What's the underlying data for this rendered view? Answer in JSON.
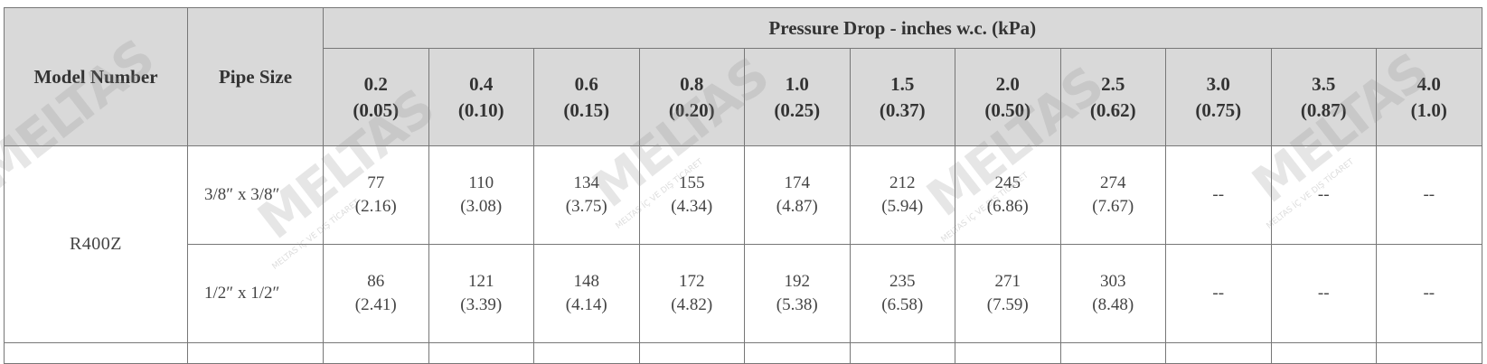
{
  "table": {
    "headers": {
      "model": "Model Number",
      "pipe": "Pipe Size",
      "group": "Pressure Drop - inches w.c. (kPa)",
      "drops": [
        {
          "value": "0.2",
          "kpa": "(0.05)"
        },
        {
          "value": "0.4",
          "kpa": "(0.10)"
        },
        {
          "value": "0.6",
          "kpa": "(0.15)"
        },
        {
          "value": "0.8",
          "kpa": "(0.20)"
        },
        {
          "value": "1.0",
          "kpa": "(0.25)"
        },
        {
          "value": "1.5",
          "kpa": "(0.37)"
        },
        {
          "value": "2.0",
          "kpa": "(0.50)"
        },
        {
          "value": "2.5",
          "kpa": "(0.62)"
        },
        {
          "value": "3.0",
          "kpa": "(0.75)"
        },
        {
          "value": "3.5",
          "kpa": "(0.87)"
        },
        {
          "value": "4.0",
          "kpa": "(1.0)"
        }
      ]
    },
    "model": "R400Z",
    "rows": [
      {
        "pipe": "3/8″ x 3/8″",
        "cells": [
          {
            "value": "77",
            "sub": "(2.16)"
          },
          {
            "value": "110",
            "sub": "(3.08)"
          },
          {
            "value": "134",
            "sub": "(3.75)"
          },
          {
            "value": "155",
            "sub": "(4.34)"
          },
          {
            "value": "174",
            "sub": "(4.87)"
          },
          {
            "value": "212",
            "sub": "(5.94)"
          },
          {
            "value": "245",
            "sub": "(6.86)"
          },
          {
            "value": "274",
            "sub": "(7.67)"
          },
          {
            "value": "--",
            "sub": ""
          },
          {
            "value": "--",
            "sub": ""
          },
          {
            "value": "--",
            "sub": ""
          }
        ]
      },
      {
        "pipe": "1/2″ x 1/2″",
        "cells": [
          {
            "value": "86",
            "sub": "(2.41)"
          },
          {
            "value": "121",
            "sub": "(3.39)"
          },
          {
            "value": "148",
            "sub": "(4.14)"
          },
          {
            "value": "172",
            "sub": "(4.82)"
          },
          {
            "value": "192",
            "sub": "(5.38)"
          },
          {
            "value": "235",
            "sub": "(6.58)"
          },
          {
            "value": "271",
            "sub": "(7.59)"
          },
          {
            "value": "303",
            "sub": "(8.48)"
          },
          {
            "value": "--",
            "sub": ""
          },
          {
            "value": "--",
            "sub": ""
          },
          {
            "value": "--",
            "sub": ""
          }
        ]
      }
    ]
  },
  "watermark": {
    "logo": "MELTAS",
    "sub": "MELTAS İÇ VE DIŞ TİCARET"
  }
}
